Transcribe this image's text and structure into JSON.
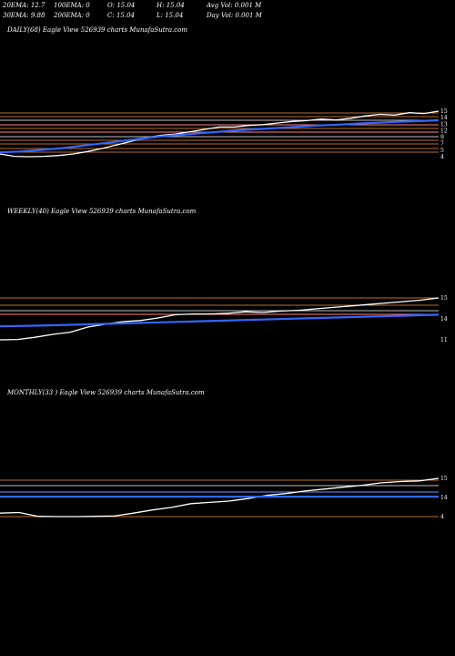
{
  "header": {
    "ema20": "20EMA: 12.7",
    "ema100": "100EMA: 0",
    "open": "O: 15.04",
    "high": "H: 15.04",
    "avg_vol": "Avg Vol: 0.001 M",
    "ema30": "30EMA: 9.88",
    "ema200": "200EMA: 0",
    "close": "C: 15.04",
    "low": "L: 15.04",
    "day_vol": "Day Vol: 0.001 M"
  },
  "chart_data": [
    {
      "type": "line",
      "title": "DAILY(68) Eagle   View  526939 charts MunafaSutra.com",
      "y_ticks": [
        "15",
        "14",
        "13",
        "12",
        "9",
        "7",
        "5",
        "4"
      ],
      "price_line_color": "#ffffff",
      "ema_line_color": "#3366ff",
      "series": [
        {
          "name": "",
          "values": [
            4.2,
            3.6,
            3.5,
            3.6,
            3.8,
            4.2,
            4.8,
            5.6,
            6.5,
            7.4,
            8.3,
            8.9,
            9.2,
            9.8,
            10.4,
            11.0,
            11.0,
            11.4,
            11.6,
            12.0,
            12.4,
            12.6,
            13.0,
            12.8,
            13.2,
            13.8,
            14.2,
            14.0,
            14.6,
            14.4,
            15.0
          ]
        },
        {
          "name": "",
          "values": [
            4.6,
            4.8,
            5.2,
            5.6,
            6.2,
            6.8,
            7.4,
            8.0,
            8.6,
            9.0,
            9.4,
            9.8,
            10.2,
            10.5,
            10.8,
            11.1,
            11.4,
            11.6,
            11.9,
            12.1,
            12.3,
            12.5,
            12.7
          ]
        }
      ]
    },
    {
      "type": "line",
      "title": "WEEKLY(40) Eagle   View  526939 charts MunafaSutra.com",
      "y_ticks": [
        "15",
        "14",
        "11"
      ],
      "price_line_color": "#ffffff",
      "ema_line_color": "#3366ff",
      "series": [
        {
          "name": "",
          "values": [
            3.5,
            3.6,
            4.2,
            5.0,
            5.6,
            7.0,
            7.8,
            8.5,
            8.8,
            9.5,
            10.4,
            10.6,
            10.6,
            10.8,
            11.2,
            11.0,
            11.4,
            11.6,
            12.0,
            12.4,
            12.8,
            13.2,
            13.6,
            14.0,
            14.4,
            15.0
          ]
        },
        {
          "name": "",
          "values": [
            7.2,
            7.4,
            7.7,
            8.0,
            8.3,
            8.6,
            8.9,
            9.2,
            9.5,
            9.8,
            10.1,
            10.4
          ]
        }
      ]
    },
    {
      "type": "line",
      "title": "MONTHLY(33                 ) Eagle   View  526939 charts MunafaSutra.com",
      "y_ticks": [
        "15",
        "14",
        "4"
      ],
      "price_line_color": "#ffffff",
      "ema_line_color": "#3366ff",
      "series": [
        {
          "name": "",
          "values": [
            4.0,
            4.2,
            3.0,
            2.9,
            2.9,
            3.0,
            3.1,
            4.0,
            5.0,
            5.8,
            7.0,
            7.4,
            7.8,
            8.6,
            9.6,
            10.2,
            11.0,
            11.6,
            12.2,
            12.8,
            13.6,
            14.0,
            14.2,
            15.0
          ]
        },
        {
          "name": "",
          "values": [
            9.2,
            9.2
          ]
        }
      ]
    }
  ]
}
